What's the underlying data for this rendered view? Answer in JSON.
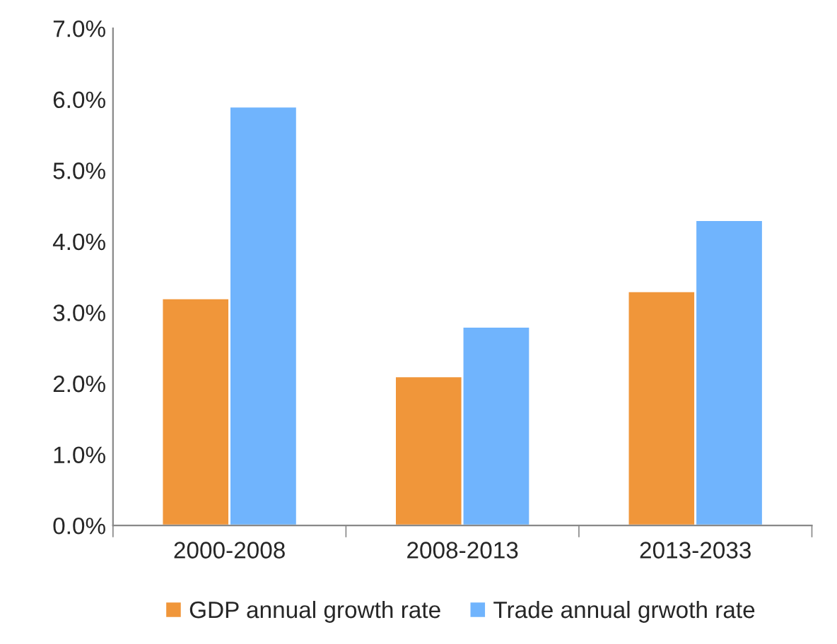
{
  "chart_data": {
    "type": "bar",
    "categories": [
      "2000-2008",
      "2008-2013",
      "2013-2033"
    ],
    "series": [
      {
        "name": "GDP annual growth rate",
        "color": "#f0963a",
        "values": [
          3.2,
          2.1,
          3.3
        ]
      },
      {
        "name": "Trade annual grwoth rate",
        "color": "#70b4fd",
        "values": [
          5.9,
          2.8,
          4.3
        ]
      }
    ],
    "ylim": [
      0,
      7
    ],
    "yticks": [
      {
        "value": 0,
        "label": "0.0%"
      },
      {
        "value": 1,
        "label": "1.0%"
      },
      {
        "value": 2,
        "label": "2.0%"
      },
      {
        "value": 3,
        "label": "3.0%"
      },
      {
        "value": 4,
        "label": "4.0%"
      },
      {
        "value": 5,
        "label": "5.0%"
      },
      {
        "value": 6,
        "label": "6.0%"
      },
      {
        "value": 7,
        "label": "7.0%"
      }
    ],
    "grid": false,
    "legend": "bottom"
  }
}
